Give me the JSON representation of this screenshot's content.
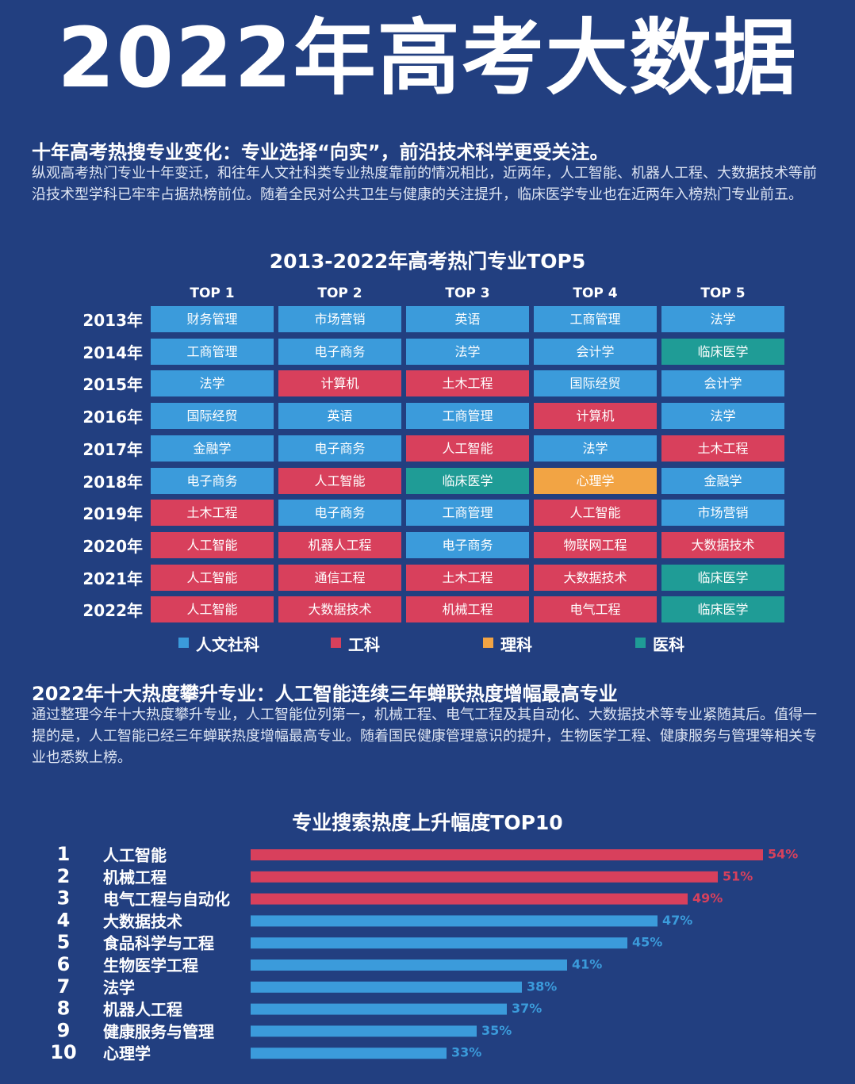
{
  "header": {
    "title": "2022年高考大数据"
  },
  "section1": {
    "heading": "十年高考热搜专业变化：专业选择“向实”，前沿技术科学更受关注。",
    "text": "纵观高考热门专业十年变迁，和往年人文社科类专业热度靠前的情况相比，近两年，人工智能、机器人工程、大数据技术等前沿技术型学科已牢牢占据热榜前位。随着全民对公共卫生与健康的关注提升，临床医学专业也在近两年入榜热门专业前五。"
  },
  "table": {
    "title": "2013-2022年高考热门专业TOP5",
    "columns": [
      "TOP 1",
      "TOP 2",
      "TOP 3",
      "TOP 4",
      "TOP 5"
    ],
    "rows": [
      {
        "year": "2013年",
        "cells": [
          "财务管理",
          "市场营销",
          "英语",
          "工商管理",
          "法学"
        ],
        "fields": [
          0,
          0,
          0,
          0,
          0
        ]
      },
      {
        "year": "2014年",
        "cells": [
          "工商管理",
          "电子商务",
          "法学",
          "会计学",
          "临床医学"
        ],
        "fields": [
          0,
          0,
          0,
          0,
          3
        ]
      },
      {
        "year": "2015年",
        "cells": [
          "法学",
          "计算机",
          "土木工程",
          "国际经贸",
          "会计学"
        ],
        "fields": [
          0,
          1,
          1,
          0,
          0
        ]
      },
      {
        "year": "2016年",
        "cells": [
          "国际经贸",
          "英语",
          "工商管理",
          "计算机",
          "法学"
        ],
        "fields": [
          0,
          0,
          0,
          1,
          0
        ]
      },
      {
        "year": "2017年",
        "cells": [
          "金融学",
          "电子商务",
          "人工智能",
          "法学",
          "土木工程"
        ],
        "fields": [
          0,
          0,
          1,
          0,
          1
        ]
      },
      {
        "year": "2018年",
        "cells": [
          "电子商务",
          "人工智能",
          "临床医学",
          "心理学",
          "金融学"
        ],
        "fields": [
          0,
          1,
          3,
          2,
          0
        ]
      },
      {
        "year": "2019年",
        "cells": [
          "土木工程",
          "电子商务",
          "工商管理",
          "人工智能",
          "市场营销"
        ],
        "fields": [
          1,
          0,
          0,
          1,
          0
        ]
      },
      {
        "year": "2020年",
        "cells": [
          "人工智能",
          "机器人工程",
          "电子商务",
          "物联网工程",
          "大数据技术"
        ],
        "fields": [
          1,
          1,
          0,
          1,
          1
        ]
      },
      {
        "year": "2021年",
        "cells": [
          "人工智能",
          "通信工程",
          "土木工程",
          "大数据技术",
          "临床医学"
        ],
        "fields": [
          1,
          1,
          1,
          1,
          3
        ]
      },
      {
        "year": "2022年",
        "cells": [
          "人工智能",
          "大数据技术",
          "机械工程",
          "电气工程",
          "临床医学"
        ],
        "fields": [
          1,
          1,
          1,
          1,
          3
        ]
      }
    ],
    "legend": [
      {
        "name": "人文社科",
        "color": "#3b9bdb"
      },
      {
        "name": "工科",
        "color": "#d8405c"
      },
      {
        "name": "理科",
        "color": "#f2a444"
      },
      {
        "name": "医科",
        "color": "#1f9c96"
      }
    ]
  },
  "section2": {
    "heading": "2022年十大热度攀升专业：人工智能连续三年蝉联热度增幅最高专业",
    "text": "通过整理今年十大热度攀升专业，人工智能位列第一，机械工程、电气工程及其自动化、大数据技术等专业紧随其后。值得一提的是，人工智能已经三年蝉联热度增幅最高专业。随着国民健康管理意识的提升，生物医学工程、健康服务与管理等相关专业也悉数上榜。"
  },
  "chart_data": {
    "type": "bar",
    "title": "专业搜索热度上升幅度TOP10",
    "rank_labels": [
      "1",
      "2",
      "3",
      "4",
      "5",
      "6",
      "7",
      "8",
      "9",
      "10"
    ],
    "categories": [
      "人工智能",
      "机械工程",
      "电气工程与自动化",
      "大数据技术",
      "食品科学与工程",
      "生物医学工程",
      "法学",
      "机器人工程",
      "健康服务与管理",
      "心理学"
    ],
    "values": [
      54,
      51,
      49,
      47,
      45,
      41,
      38,
      37,
      35,
      33
    ],
    "value_labels": [
      "54%",
      "51%",
      "49%",
      "47%",
      "45%",
      "41%",
      "38%",
      "37%",
      "35%",
      "33%"
    ],
    "colors": [
      "#d8405c",
      "#d8405c",
      "#d8405c",
      "#3b9bdb",
      "#3b9bdb",
      "#3b9bdb",
      "#3b9bdb",
      "#3b9bdb",
      "#3b9bdb",
      "#3b9bdb"
    ],
    "xlim": [
      20,
      56
    ]
  }
}
